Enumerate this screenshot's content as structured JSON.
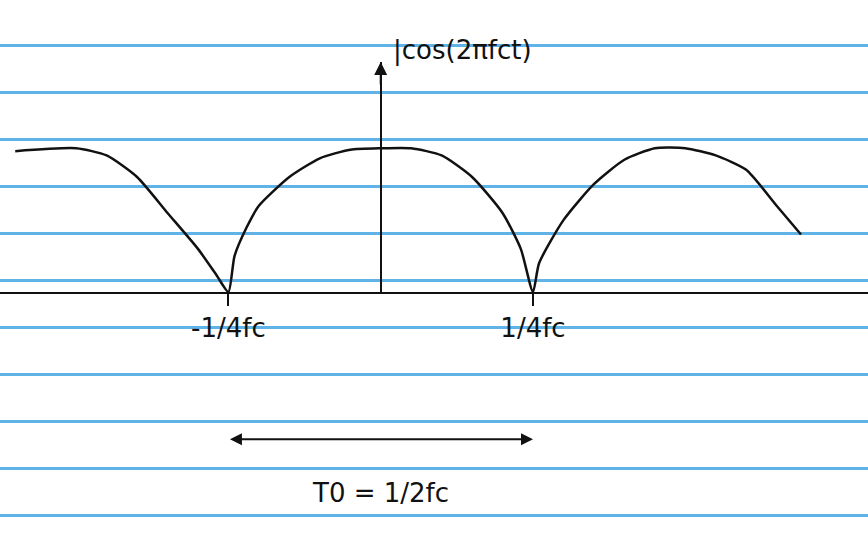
{
  "chart_data": {
    "type": "line",
    "ylabel": "|cos(2πfct)",
    "x": [
      -0.6,
      -0.5,
      -0.45,
      -0.4,
      -0.35,
      -0.3,
      -0.27,
      -0.25,
      -0.24,
      -0.22,
      -0.2,
      -0.15,
      -0.1,
      -0.05,
      0,
      0.05,
      0.1,
      0.15,
      0.2,
      0.23,
      0.25,
      0.26,
      0.3,
      0.35,
      0.4,
      0.45,
      0.5,
      0.55,
      0.6,
      0.65,
      0.69
    ],
    "values": [
      0.98,
      1.0,
      0.95,
      0.8,
      0.55,
      0.3,
      0.12,
      0,
      0.25,
      0.45,
      0.6,
      0.8,
      0.93,
      0.99,
      1.0,
      1.0,
      0.95,
      0.8,
      0.55,
      0.3,
      0,
      0.2,
      0.5,
      0.75,
      0.92,
      1.0,
      1.0,
      0.95,
      0.85,
      0.6,
      0.4
    ],
    "color": "#111111",
    "xlim": [
      -0.625,
      0.8
    ],
    "xticks": [
      {
        "value": -0.25,
        "label": "-1/4fc"
      },
      {
        "value": 0.25,
        "label": "1/4fc"
      }
    ],
    "ylim": [
      0,
      1.6
    ],
    "tick_labels": "x",
    "grid": false,
    "annotations": [
      {
        "text": "T0 = 1/2fc",
        "x": [
          -0.25,
          0.25
        ]
      }
    ]
  }
}
